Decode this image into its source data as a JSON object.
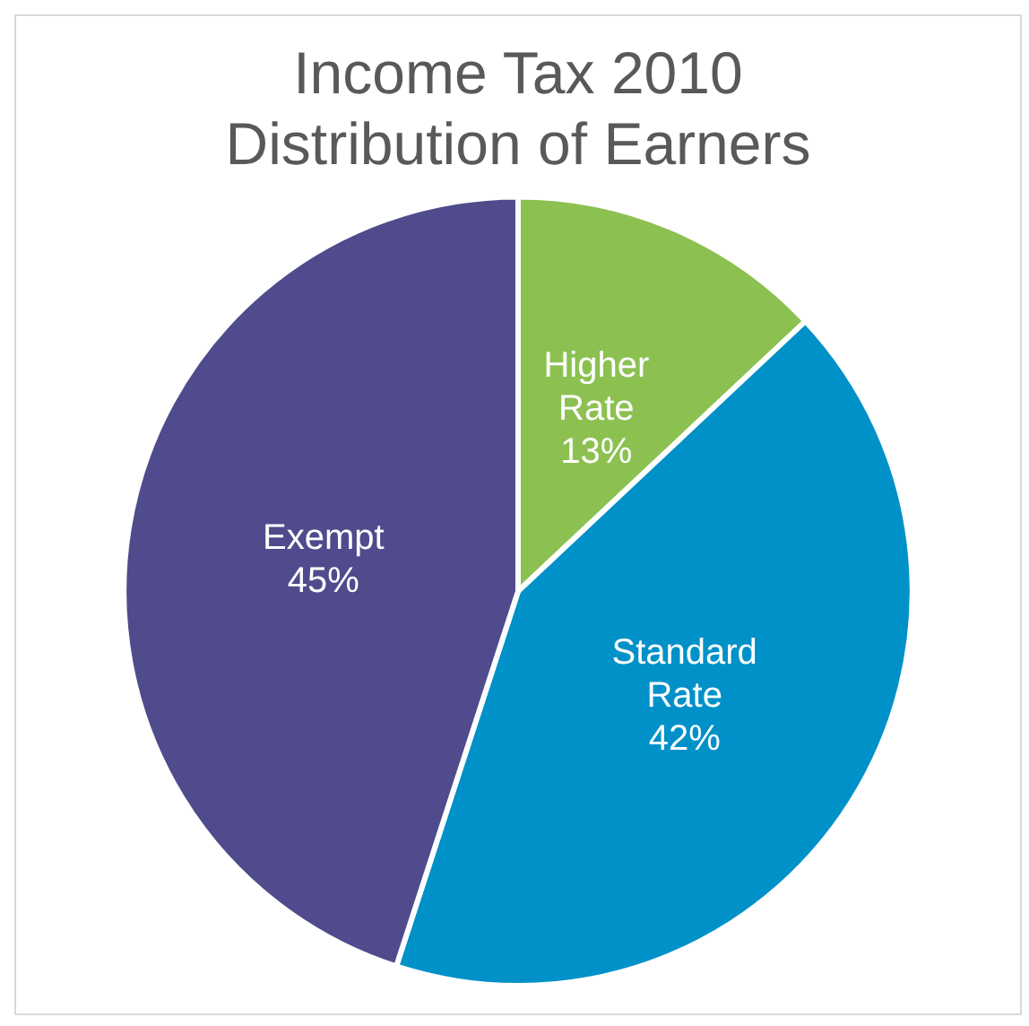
{
  "chart_data": {
    "type": "pie",
    "title": "Income Tax 2010\nDistribution of Earners",
    "categories": [
      "Higher Rate",
      "Standard Rate",
      "Exempt"
    ],
    "values": [
      13,
      42,
      45
    ],
    "colors": [
      "#8cc152",
      "#0091c9",
      "#4f4b8c"
    ],
    "value_labels": [
      "13%",
      "42%",
      "45%"
    ],
    "legend": false
  }
}
